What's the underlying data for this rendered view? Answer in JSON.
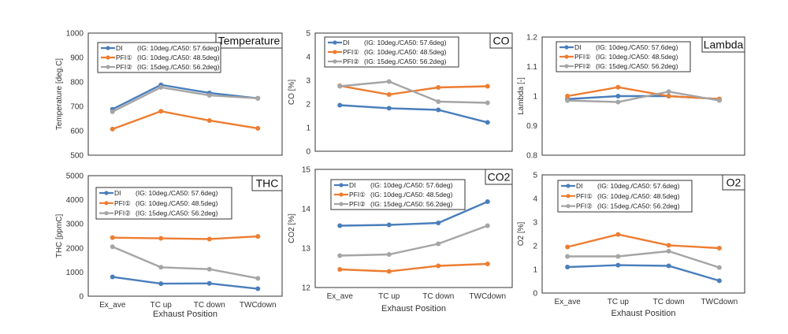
{
  "colors": {
    "DI": "#4a7ebb",
    "PFI1": "#ed7d31",
    "PFI2": "#a5a5a5"
  },
  "chart_data": [
    {
      "type": "line",
      "title": "Temperature",
      "ylabel": "Temperature [deg.C]",
      "xlabel": "",
      "categories": [
        "",
        "",
        "",
        ""
      ],
      "ylim": [
        500,
        1000
      ],
      "yticks": [
        "500",
        "600",
        "700",
        "800",
        "900",
        "1000"
      ],
      "legend_position": "top-left",
      "series": [
        {
          "name": "DI",
          "detail": "(IG: 10deg./CA50: 57.6deg)",
          "values": [
            688,
            788,
            755,
            733
          ]
        },
        {
          "name": "PFI①",
          "detail": "(IG: 10deg./CA50: 48.5deg)",
          "values": [
            607,
            680,
            642,
            610
          ]
        },
        {
          "name": "PFI②",
          "detail": "(IG: 15deg./CA50: 56.2deg)",
          "values": [
            678,
            778,
            745,
            733
          ]
        }
      ]
    },
    {
      "type": "line",
      "title": "CO",
      "ylabel": "CO [%]",
      "xlabel": "",
      "categories": [
        "",
        "",
        "",
        ""
      ],
      "ylim": [
        0,
        5
      ],
      "yticks": [
        "0",
        "1",
        "2",
        "3",
        "4",
        "5"
      ],
      "legend_position": "top",
      "series": [
        {
          "name": "DI",
          "detail": "(IG: 10deg./CA50: 57.6deg)",
          "values": [
            1.95,
            1.82,
            1.75,
            1.22
          ]
        },
        {
          "name": "PFI①",
          "detail": "(IG: 10deg./CA50: 48.5deg)",
          "values": [
            2.77,
            2.4,
            2.7,
            2.75
          ]
        },
        {
          "name": "PFI②",
          "detail": "(IG: 15deg./CA50: 56.2deg)",
          "values": [
            2.75,
            2.95,
            2.1,
            2.05
          ]
        }
      ]
    },
    {
      "type": "line",
      "title": "Lambda",
      "ylabel": "Lambda [-]",
      "xlabel": "",
      "categories": [
        "",
        "",
        "",
        ""
      ],
      "ylim": [
        0.8,
        1.2
      ],
      "yticks": [
        "0.8",
        "0.9",
        "1",
        "1.1",
        "1.2"
      ],
      "legend_position": "top",
      "series": [
        {
          "name": "DI",
          "detail": "(IG: 10deg./CA50: 57.6deg)",
          "values": [
            0.99,
            1.0,
            1.0,
            0.99
          ]
        },
        {
          "name": "PFI①",
          "detail": "(IG: 10deg./CA50: 48.5deg)",
          "values": [
            1.0,
            1.03,
            1.0,
            0.99
          ]
        },
        {
          "name": "PFI②",
          "detail": "(IG: 15deg./CA50: 56.2deg)",
          "values": [
            0.985,
            0.98,
            1.015,
            0.985
          ]
        }
      ]
    },
    {
      "type": "line",
      "title": "THC",
      "ylabel": "THC [ppmC]",
      "xlabel": "Exhaust Position",
      "categories": [
        "Ex_ave",
        "TC up",
        "TC down",
        "TWCdown"
      ],
      "ylim": [
        0,
        5000
      ],
      "yticks": [
        "0",
        "1000",
        "2000",
        "3000",
        "4000",
        "5000"
      ],
      "legend_position": "top",
      "series": [
        {
          "name": "DI",
          "detail": "(IG: 10deg./CA50: 57.6deg)",
          "values": [
            800,
            520,
            530,
            310
          ]
        },
        {
          "name": "PFI①",
          "detail": "(IG: 10deg./CA50: 48.5deg)",
          "values": [
            2430,
            2400,
            2370,
            2480
          ]
        },
        {
          "name": "PFI②",
          "detail": "(IG: 15deg./CA50: 56.2deg)",
          "values": [
            2050,
            1200,
            1120,
            740
          ]
        }
      ]
    },
    {
      "type": "line",
      "title": "CO2",
      "ylabel": "CO2 [%]",
      "xlabel": "Exhaust Position",
      "categories": [
        "Ex_ave",
        "TC up",
        "TC down",
        "TWCdown"
      ],
      "ylim": [
        12,
        15
      ],
      "yticks": [
        "12",
        "13",
        "14",
        "15"
      ],
      "legend_position": "top",
      "series": [
        {
          "name": "DI",
          "detail": "(IG: 10deg./CA50: 57.6deg)",
          "values": [
            13.57,
            13.59,
            13.64,
            14.18
          ]
        },
        {
          "name": "PFI①",
          "detail": "(IG: 10deg./CA50: 48.5deg)",
          "values": [
            12.46,
            12.41,
            12.55,
            12.6
          ]
        },
        {
          "name": "PFI②",
          "detail": "(IG: 15deg./CA50: 56.2deg)",
          "values": [
            12.81,
            12.84,
            13.11,
            13.57
          ]
        }
      ]
    },
    {
      "type": "line",
      "title": "O2",
      "ylabel": "O2 [%]",
      "xlabel": "Exhaust Position",
      "categories": [
        "Ex_ave",
        "TC up",
        "TC down",
        "TWCdown"
      ],
      "ylim": [
        0,
        5
      ],
      "yticks": [
        "0",
        "1",
        "2",
        "3",
        "4",
        "5"
      ],
      "legend_position": "top",
      "series": [
        {
          "name": "DI",
          "detail": "(IG: 10deg./CA50: 57.6deg)",
          "values": [
            1.1,
            1.18,
            1.15,
            0.52
          ]
        },
        {
          "name": "PFI①",
          "detail": "(IG: 10deg./CA50: 48.5deg)",
          "values": [
            1.95,
            2.48,
            2.02,
            1.9
          ]
        },
        {
          "name": "PFI②",
          "detail": "(IG: 15deg./CA50: 56.2deg)",
          "values": [
            1.55,
            1.55,
            1.77,
            1.08
          ]
        }
      ]
    }
  ]
}
